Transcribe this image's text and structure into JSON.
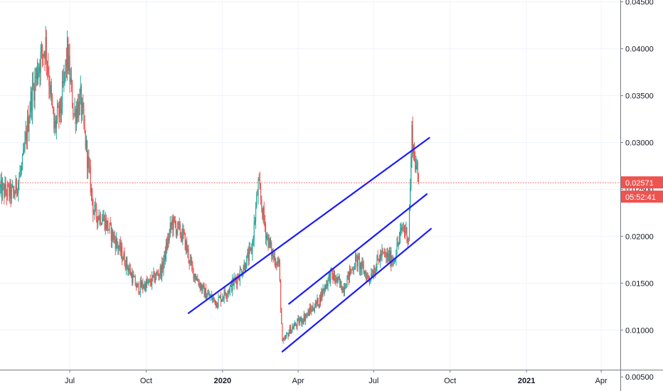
{
  "chart_data": {
    "type": "candlestick",
    "x_ticks": [
      {
        "label": "Jul",
        "date": "2019-07-01",
        "bold": false
      },
      {
        "label": "Oct",
        "date": "2019-10-01",
        "bold": false
      },
      {
        "label": "2020",
        "date": "2020-01-01",
        "bold": true
      },
      {
        "label": "Apr",
        "date": "2020-04-01",
        "bold": false
      },
      {
        "label": "Jul",
        "date": "2020-07-01",
        "bold": false
      },
      {
        "label": "Oct",
        "date": "2020-10-01",
        "bold": false
      },
      {
        "label": "2021",
        "date": "2021-01-01",
        "bold": true
      },
      {
        "label": "Apr",
        "date": "2021-04-01",
        "bold": false
      }
    ],
    "y_ticks": [
      "0.04500",
      "0.04000",
      "0.03500",
      "0.03000",
      "0.02500",
      "0.02000",
      "0.01500",
      "0.01000",
      "0.00500"
    ],
    "y_range": [
      0.0035,
      0.0452
    ],
    "x_range": [
      "2019-04-08",
      "2021-04-24"
    ],
    "grid": true,
    "last_price": {
      "value": 0.02571,
      "label": "0.02571",
      "countdown": "05:52:41",
      "color": "#ef5350"
    },
    "colors": {
      "up": "#26a69a",
      "down": "#ef5350",
      "trendline": "#1a1aff",
      "grid": "#f0f3fa",
      "axis_text": "#131722"
    },
    "candle_path": [
      [
        "2019-04-08",
        0.0249
      ],
      [
        "2019-04-25",
        0.0245
      ],
      [
        "2019-05-05",
        0.0275
      ],
      [
        "2019-05-15",
        0.0345
      ],
      [
        "2019-05-25",
        0.0385
      ],
      [
        "2019-06-02",
        0.0405
      ],
      [
        "2019-06-12",
        0.0315
      ],
      [
        "2019-06-20",
        0.0335
      ],
      [
        "2019-06-28",
        0.0395
      ],
      [
        "2019-07-06",
        0.033
      ],
      [
        "2019-07-14",
        0.0345
      ],
      [
        "2019-07-22",
        0.0285
      ],
      [
        "2019-07-30",
        0.0225
      ],
      [
        "2019-08-10",
        0.022
      ],
      [
        "2019-08-25",
        0.0195
      ],
      [
        "2019-09-05",
        0.0175
      ],
      [
        "2019-09-20",
        0.0145
      ],
      [
        "2019-10-05",
        0.015
      ],
      [
        "2019-10-20",
        0.0165
      ],
      [
        "2019-11-01",
        0.0215
      ],
      [
        "2019-11-15",
        0.02
      ],
      [
        "2019-11-25",
        0.0165
      ],
      [
        "2019-12-10",
        0.014
      ],
      [
        "2019-12-25",
        0.013
      ],
      [
        "2020-01-10",
        0.0145
      ],
      [
        "2020-01-25",
        0.0165
      ],
      [
        "2020-02-05",
        0.0185
      ],
      [
        "2020-02-13",
        0.0255
      ],
      [
        "2020-02-22",
        0.0205
      ],
      [
        "2020-03-01",
        0.018
      ],
      [
        "2020-03-09",
        0.017
      ],
      [
        "2020-03-13",
        0.0085
      ],
      [
        "2020-03-22",
        0.01
      ],
      [
        "2020-04-10",
        0.0115
      ],
      [
        "2020-04-25",
        0.013
      ],
      [
        "2020-05-10",
        0.016
      ],
      [
        "2020-05-25",
        0.0145
      ],
      [
        "2020-06-10",
        0.0175
      ],
      [
        "2020-06-25",
        0.0155
      ],
      [
        "2020-07-10",
        0.018
      ],
      [
        "2020-07-25",
        0.0175
      ],
      [
        "2020-08-05",
        0.021
      ],
      [
        "2020-08-12",
        0.02
      ],
      [
        "2020-08-16",
        0.031
      ],
      [
        "2020-08-19",
        0.0285
      ],
      [
        "2020-08-24",
        0.0257
      ]
    ],
    "trend_lines": [
      {
        "p1": [
          "2019-11-21",
          0.0118
        ],
        "p2": [
          "2020-09-06",
          0.0305
        ]
      },
      {
        "p1": [
          "2020-03-21",
          0.0128
        ],
        "p2": [
          "2020-09-03",
          0.0245
        ]
      },
      {
        "p1": [
          "2020-03-13",
          0.0077
        ],
        "p2": [
          "2020-09-08",
          0.0208
        ]
      }
    ]
  }
}
